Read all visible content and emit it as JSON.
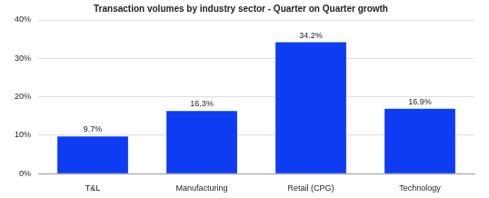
{
  "chart_data": {
    "type": "bar",
    "title": "Transaction volumes by industry sector - Quarter on Quarter growth",
    "categories": [
      "T&L",
      "Manufacturing",
      "Retail (CPG)",
      "Technology"
    ],
    "values": [
      9.7,
      16.3,
      34.2,
      16.9
    ],
    "value_labels": [
      "9.7%",
      "16.3%",
      "34.2%",
      "16.9%"
    ],
    "data_labels": true,
    "color": "#0d3cf2",
    "ylim": [
      0,
      40
    ],
    "yticks": [
      {
        "value": 0,
        "label": "0%"
      },
      {
        "value": 10,
        "label": "10%"
      },
      {
        "value": 20,
        "label": "20%"
      },
      {
        "value": 30,
        "label": "30%"
      },
      {
        "value": 40,
        "label": "40%"
      }
    ],
    "grid": true
  }
}
